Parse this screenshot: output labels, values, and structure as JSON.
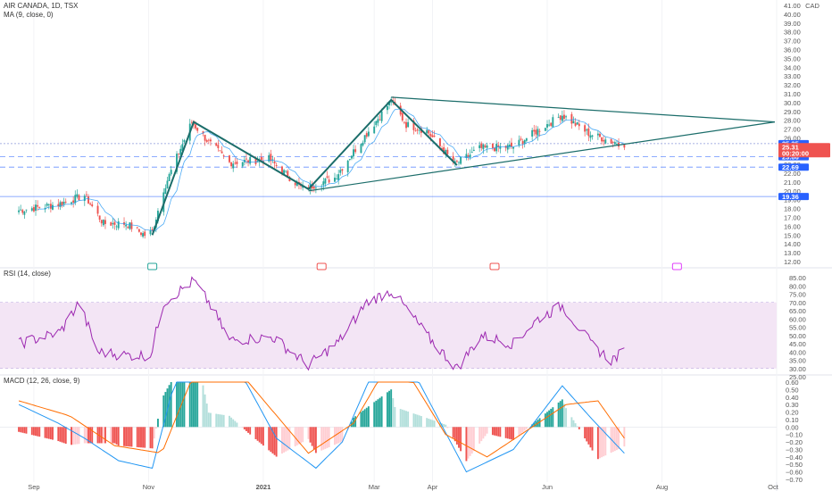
{
  "header": {
    "title": "AIR CANADA, 1D, TSX",
    "ma_label": "MA (9, close, 0)",
    "currency": "CAD"
  },
  "rsi_label": "RSI (14, close)",
  "macd_label": "MACD (12, 26, close, 9)",
  "colors": {
    "up": "#26a69a",
    "down": "#ef5350",
    "ma": "#2196f3",
    "rsi": "#9c27b0",
    "rsi_band": "#f3e5f5",
    "macd_line": "#2196f3",
    "signal_line": "#ff6d00",
    "trendline": "#1b6d6a",
    "price_tag": "#ef5350",
    "level_tag": "#2962ff"
  },
  "price_tags": {
    "last": "25.31",
    "countdown": "00:20:00",
    "levels": [
      "25.35",
      "23.86",
      "22.69",
      "19.36"
    ]
  },
  "chart_data": [
    {
      "type": "candlestick",
      "title": "AIR CANADA, 1D, TSX",
      "ylim": [
        12,
        41
      ],
      "y_ticks": [
        "41.00",
        "40.00",
        "39.00",
        "38.00",
        "37.00",
        "36.00",
        "35.00",
        "34.00",
        "33.00",
        "32.00",
        "31.00",
        "30.00",
        "29.00",
        "28.00",
        "27.00",
        "26.00",
        "25.00",
        "24.00",
        "23.00",
        "22.00",
        "21.00",
        "20.00",
        "19.00",
        "18.00",
        "17.00",
        "16.00",
        "15.00",
        "14.00",
        "13.00",
        "12.00"
      ],
      "x_ticks": [
        "Sep",
        "Nov",
        "2021",
        "Mar",
        "Apr",
        "Jun",
        "Aug",
        "Oct"
      ],
      "horizontal_levels": [
        25.35,
        23.86,
        22.69,
        19.36
      ],
      "close_anchors": [
        {
          "x": "2020-08-24",
          "y": 17.8
        },
        {
          "x": "2020-09-14",
          "y": 18.5
        },
        {
          "x": "2020-09-28",
          "y": 19.5
        },
        {
          "x": "2020-10-08",
          "y": 16.3
        },
        {
          "x": "2020-10-20",
          "y": 16.3
        },
        {
          "x": "2020-10-30",
          "y": 15.0
        },
        {
          "x": "2020-11-03",
          "y": 15.4
        },
        {
          "x": "2020-11-09",
          "y": 20.2
        },
        {
          "x": "2020-11-16",
          "y": 23.8
        },
        {
          "x": "2020-11-24",
          "y": 27.8
        },
        {
          "x": "2020-12-03",
          "y": 25.5
        },
        {
          "x": "2020-12-14",
          "y": 23.2
        },
        {
          "x": "2021-01-04",
          "y": 23.6
        },
        {
          "x": "2021-01-22",
          "y": 20.2
        },
        {
          "x": "2021-02-08",
          "y": 21.5
        },
        {
          "x": "2021-02-25",
          "y": 26.5
        },
        {
          "x": "2021-03-10",
          "y": 30.2
        },
        {
          "x": "2021-03-18",
          "y": 27.5
        },
        {
          "x": "2021-03-29",
          "y": 26.8
        },
        {
          "x": "2021-04-13",
          "y": 23.0
        },
        {
          "x": "2021-04-26",
          "y": 24.8
        },
        {
          "x": "2021-05-14",
          "y": 25.0
        },
        {
          "x": "2021-05-28",
          "y": 27.0
        },
        {
          "x": "2021-06-09",
          "y": 28.6
        },
        {
          "x": "2021-06-23",
          "y": 26.5
        },
        {
          "x": "2021-07-05",
          "y": 25.6
        },
        {
          "x": "2021-07-12",
          "y": 25.3
        }
      ],
      "pattern_lines": [
        [
          {
            "x": "2020-11-03",
            "y": 15.0
          },
          {
            "x": "2020-11-25",
            "y": 27.8
          },
          {
            "x": "2021-01-25",
            "y": 20.2
          },
          {
            "x": "2021-03-10",
            "y": 30.3
          },
          {
            "x": "2021-04-14",
            "y": 22.9
          }
        ],
        [
          {
            "x": "2021-03-10",
            "y": 30.6
          },
          {
            "x": "2021-09-30",
            "y": 27.8
          }
        ],
        [
          {
            "x": "2021-01-25",
            "y": 20.0
          },
          {
            "x": "2021-09-30",
            "y": 27.8
          }
        ]
      ]
    },
    {
      "type": "line",
      "title": "RSI (14, close)",
      "ylim": [
        25,
        85
      ],
      "y_ticks": [
        "85.00",
        "80.00",
        "75.00",
        "70.00",
        "65.00",
        "60.00",
        "55.00",
        "50.00",
        "45.00",
        "40.00",
        "35.00",
        "30.00",
        "25.00"
      ],
      "band": [
        30,
        70
      ],
      "series": [
        {
          "name": "RSI (14, close)",
          "anchors": [
            {
              "x": "2020-08-24",
              "y": 45
            },
            {
              "x": "2020-09-15",
              "y": 52
            },
            {
              "x": "2020-09-25",
              "y": 70
            },
            {
              "x": "2020-10-05",
              "y": 40
            },
            {
              "x": "2020-10-20",
              "y": 38
            },
            {
              "x": "2020-11-02",
              "y": 38
            },
            {
              "x": "2020-11-09",
              "y": 70
            },
            {
              "x": "2020-11-25",
              "y": 83
            },
            {
              "x": "2020-12-03",
              "y": 70
            },
            {
              "x": "2020-12-14",
              "y": 47
            },
            {
              "x": "2021-01-06",
              "y": 49
            },
            {
              "x": "2021-01-25",
              "y": 32
            },
            {
              "x": "2021-02-10",
              "y": 46
            },
            {
              "x": "2021-02-25",
              "y": 70
            },
            {
              "x": "2021-03-10",
              "y": 77
            },
            {
              "x": "2021-03-19",
              "y": 65
            },
            {
              "x": "2021-03-29",
              "y": 50
            },
            {
              "x": "2021-04-14",
              "y": 30
            },
            {
              "x": "2021-04-27",
              "y": 50
            },
            {
              "x": "2021-05-14",
              "y": 45
            },
            {
              "x": "2021-05-27",
              "y": 60
            },
            {
              "x": "2021-06-09",
              "y": 68
            },
            {
              "x": "2021-06-25",
              "y": 44
            },
            {
              "x": "2021-07-05",
              "y": 35
            },
            {
              "x": "2021-07-12",
              "y": 40
            }
          ]
        }
      ]
    },
    {
      "type": "bar",
      "title": "MACD (12, 26, close, 9)",
      "ylim": [
        -0.7,
        0.6
      ],
      "y_ticks": [
        "0.60",
        "0.50",
        "0.40",
        "0.30",
        "0.20",
        "0.10",
        "0.00",
        "−0.10",
        "−0.20",
        "−0.30",
        "−0.40",
        "−0.50",
        "−0.60",
        "−0.70"
      ],
      "series": [
        {
          "name": "MACD",
          "anchors": [
            {
              "x": "2020-08-24",
              "y": 0.3
            },
            {
              "x": "2020-09-14",
              "y": 0.05
            },
            {
              "x": "2020-09-28",
              "y": -0.15
            },
            {
              "x": "2020-10-16",
              "y": -0.45
            },
            {
              "x": "2020-11-03",
              "y": -0.55
            },
            {
              "x": "2020-11-25",
              "y": 1.6
            },
            {
              "x": "2020-12-14",
              "y": 1.0
            },
            {
              "x": "2021-01-08",
              "y": -0.15
            },
            {
              "x": "2021-01-29",
              "y": -0.55
            },
            {
              "x": "2021-02-12",
              "y": -0.2
            },
            {
              "x": "2021-03-10",
              "y": 1.3
            },
            {
              "x": "2021-03-29",
              "y": 0.4
            },
            {
              "x": "2021-04-19",
              "y": -0.6
            },
            {
              "x": "2021-05-14",
              "y": -0.3
            },
            {
              "x": "2021-06-09",
              "y": 0.55
            },
            {
              "x": "2021-06-25",
              "y": 0.1
            },
            {
              "x": "2021-07-12",
              "y": -0.35
            }
          ]
        },
        {
          "name": "Signal",
          "anchors": [
            {
              "x": "2020-08-24",
              "y": 0.35
            },
            {
              "x": "2020-09-20",
              "y": 0.15
            },
            {
              "x": "2020-10-14",
              "y": -0.25
            },
            {
              "x": "2020-11-08",
              "y": -0.35
            },
            {
              "x": "2020-12-03",
              "y": 1.2
            },
            {
              "x": "2020-12-24",
              "y": 0.6
            },
            {
              "x": "2021-01-25",
              "y": -0.35
            },
            {
              "x": "2021-02-18",
              "y": 0.05
            },
            {
              "x": "2021-03-12",
              "y": 1.0
            },
            {
              "x": "2021-04-08",
              "y": -0.1
            },
            {
              "x": "2021-04-30",
              "y": -0.4
            },
            {
              "x": "2021-06-11",
              "y": 0.3
            },
            {
              "x": "2021-06-28",
              "y": 0.35
            },
            {
              "x": "2021-07-12",
              "y": -0.15
            }
          ]
        }
      ]
    }
  ]
}
